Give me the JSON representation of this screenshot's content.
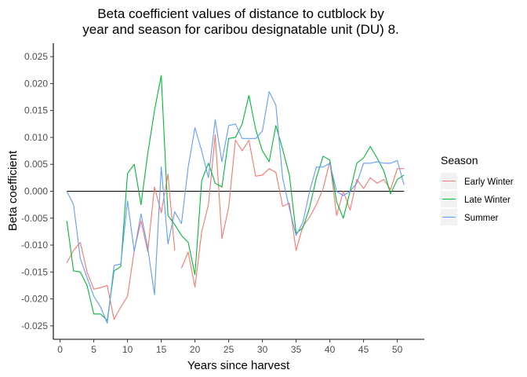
{
  "chart_data": {
    "type": "line",
    "title": [
      "Beta coefficient values of distance to cutblock by",
      "year and season for caribou designatable unit (DU) 8."
    ],
    "xlabel": "Years since harvest",
    "ylabel": "Beta coefficient",
    "xlim": [
      -1,
      54
    ],
    "ylim": [
      -0.0275,
      0.0275
    ],
    "xticks": [
      0,
      5,
      10,
      15,
      20,
      25,
      30,
      35,
      40,
      45,
      50
    ],
    "xtick_labels": [
      "0",
      "5",
      "10",
      "15",
      "20",
      "25",
      "30",
      "35",
      "40",
      "45",
      "50"
    ],
    "yticks": [
      -0.025,
      -0.02,
      -0.015,
      -0.01,
      -0.005,
      0,
      0.005,
      0.01,
      0.015,
      0.02,
      0.025
    ],
    "ytick_labels": [
      "-0.025",
      "-0.020",
      "-0.015",
      "-0.010",
      "-0.005",
      "0.000",
      "0.005",
      "0.010",
      "0.015",
      "0.020",
      "0.025"
    ],
    "grid": false,
    "legend": {
      "title": "Season",
      "placement": "right"
    },
    "reference_line": {
      "y": 0,
      "x_range": [
        1,
        51
      ],
      "color": "#000000"
    },
    "series": [
      {
        "name": "Early Winter",
        "color": "#F8766D",
        "x": [
          1,
          2,
          3,
          4,
          5,
          6,
          7,
          8,
          9,
          10,
          11,
          12,
          13,
          14,
          15,
          16,
          17,
          null,
          18,
          19,
          20,
          21,
          22,
          23,
          24,
          25,
          26,
          27,
          28,
          29,
          30,
          31,
          32,
          33,
          34,
          35,
          36,
          37,
          38,
          39,
          40,
          41,
          42,
          43,
          44,
          45,
          46,
          47,
          48,
          49,
          50,
          51
        ],
        "y": [
          -0.0133,
          -0.011,
          -0.0095,
          -0.015,
          -0.0182,
          -0.0179,
          -0.0175,
          -0.0238,
          -0.0215,
          -0.0195,
          -0.011,
          -0.0055,
          -0.0112,
          0.0008,
          -0.004,
          0.0032,
          -0.011,
          null,
          -0.0143,
          -0.0113,
          -0.0178,
          -0.0075,
          -0.0025,
          0.0105,
          -0.0088,
          -0.003,
          0.0095,
          0.0075,
          0.0095,
          0.0028,
          0.003,
          0.0042,
          0.0035,
          -0.0028,
          -0.0022,
          -0.011,
          -0.0065,
          -0.0048,
          -0.0025,
          0.0005,
          0.0055,
          -0.0045,
          0.0,
          -0.0035,
          0.0022,
          0.0005,
          0.0025,
          0.0015,
          0.0022,
          0.0003,
          0.0042,
          0.0042
        ]
      },
      {
        "name": "Late Winter",
        "color": "#00BA38",
        "x": [
          1,
          2,
          3,
          4,
          5,
          6,
          7,
          8,
          9,
          10,
          11,
          12,
          13,
          14,
          15,
          16,
          17,
          18,
          19,
          20,
          21,
          22,
          23,
          24,
          25,
          26,
          27,
          28,
          29,
          30,
          31,
          32,
          33,
          34,
          35,
          36,
          37,
          38,
          39,
          40,
          41,
          42,
          43,
          44,
          45,
          46,
          47,
          48,
          49,
          50,
          51
        ],
        "y": [
          -0.0055,
          -0.0148,
          -0.015,
          -0.0175,
          -0.0228,
          -0.0228,
          -0.024,
          -0.0148,
          -0.014,
          0.0033,
          0.005,
          -0.0025,
          0.007,
          0.015,
          0.0215,
          -0.0045,
          -0.0062,
          -0.0082,
          -0.0095,
          -0.0155,
          0.002,
          0.0052,
          0.0015,
          0.0008,
          0.0098,
          0.01,
          0.0125,
          0.0178,
          0.0115,
          0.0075,
          0.0055,
          0.0122,
          0.0078,
          0.003,
          -0.0078,
          -0.0068,
          -0.003,
          0.0025,
          0.0065,
          0.0058,
          -0.002,
          -0.005,
          0.0,
          0.0052,
          0.0062,
          0.0083,
          0.0062,
          0.0038,
          -0.0005,
          0.0022,
          0.003
        ]
      },
      {
        "name": "Summer",
        "color": "#619CFF",
        "x": [
          1,
          2,
          3,
          4,
          5,
          6,
          7,
          8,
          9,
          10,
          11,
          12,
          13,
          14,
          15,
          16,
          17,
          18,
          19,
          20,
          21,
          22,
          23,
          24,
          25,
          26,
          27,
          28,
          29,
          30,
          31,
          32,
          33,
          34,
          35,
          36,
          37,
          38,
          39,
          40,
          41,
          42,
          43,
          44,
          45,
          46,
          47,
          48,
          49,
          50,
          51
        ],
        "y": [
          0.0,
          -0.0025,
          -0.0125,
          -0.016,
          -0.0195,
          -0.0215,
          -0.0245,
          -0.0138,
          -0.0135,
          -0.0018,
          -0.0112,
          -0.0042,
          -0.0105,
          -0.0192,
          0.0045,
          -0.0098,
          -0.0038,
          -0.006,
          0.0045,
          0.0118,
          0.0075,
          0.0025,
          0.0133,
          0.0055,
          0.0122,
          0.0125,
          0.0098,
          0.0098,
          0.0098,
          0.0112,
          0.0185,
          0.016,
          0.0025,
          -0.0032,
          -0.0082,
          -0.0058,
          0.0,
          0.0045,
          0.0045,
          0.0052,
          0.0,
          -0.0008,
          0.0,
          0.0015,
          0.0052,
          0.0052,
          0.0055,
          0.0052,
          0.0052,
          0.0057,
          0.0012
        ]
      }
    ]
  }
}
